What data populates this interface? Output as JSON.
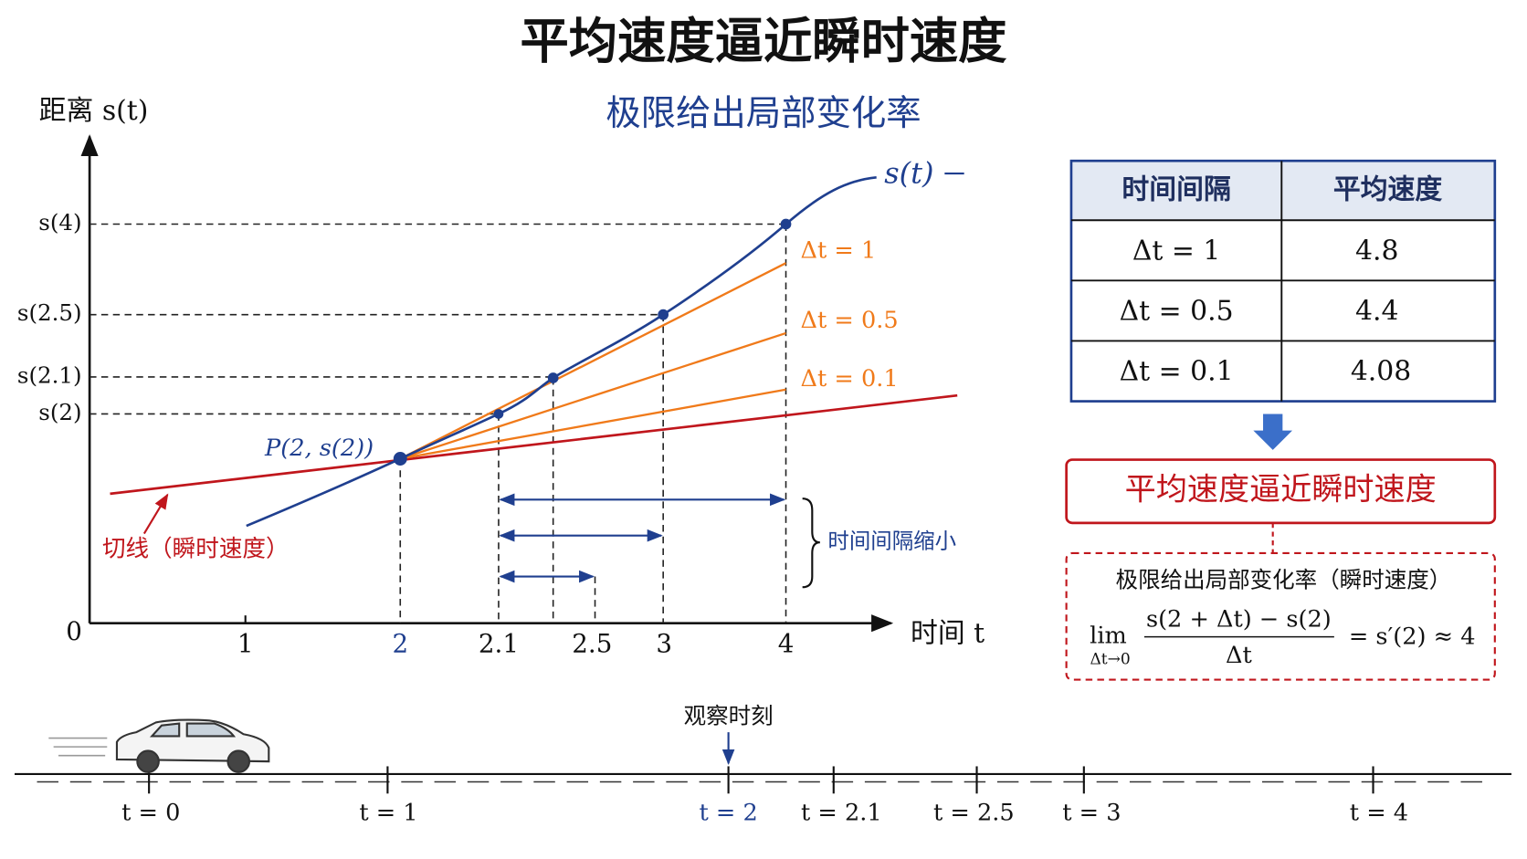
{
  "header": {
    "title": "平均速度逼近瞬时速度",
    "subtitle": "极限给出局部变化率"
  },
  "graph": {
    "y_axis_label": "距离 s(t)",
    "x_axis_label": "时间 t",
    "origin": "0",
    "curve_label": "s(t)",
    "y_labels": [
      "s(4)",
      "s(2.5)",
      "s(2.1)",
      "s(2)"
    ],
    "x_labels": [
      "1",
      "2",
      "2.1",
      "2.5",
      "3",
      "4"
    ],
    "secant_labels": [
      "Δt = 1",
      "Δt = 0.5",
      "Δt = 0.1"
    ],
    "point_label": "P(2, s(2))",
    "tangent_label": "切线（瞬时速度）",
    "brace_label": "时间间隔缩小"
  },
  "table": {
    "headers": [
      "时间间隔",
      "平均速度"
    ],
    "rows": [
      [
        "Δt = 1",
        "4.8"
      ],
      [
        "Δt = 0.5",
        "4.4"
      ],
      [
        "Δt = 0.1",
        "4.08"
      ]
    ]
  },
  "conclusion": "平均速度逼近瞬时速度",
  "formula": {
    "caption": "极限给出局部变化率（瞬时速度）",
    "lim": "lim",
    "subscript": "Δt→0",
    "numerator": "s(2 + Δt) − s(2)",
    "denominator": "Δt",
    "result": "= s′(2) ≈ 4"
  },
  "timeline": {
    "marker_label": "观察时刻",
    "labels": [
      "t = 0",
      "t = 1",
      "t = 2",
      "t = 2.1",
      "t = 2.5",
      "t = 3",
      "t = 4"
    ]
  }
}
